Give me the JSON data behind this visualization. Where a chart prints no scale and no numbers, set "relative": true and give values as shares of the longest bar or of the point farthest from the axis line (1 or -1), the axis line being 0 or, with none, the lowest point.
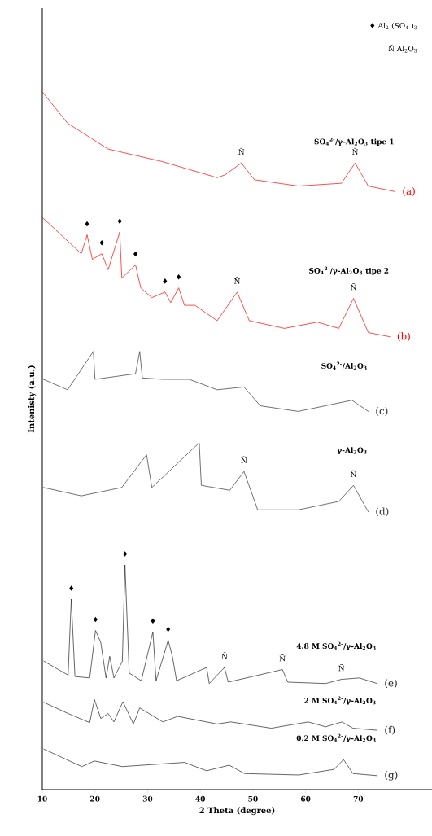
{
  "chart_data": {
    "type": "line",
    "relative": true,
    "xlabel": "2 Theta (degree)",
    "ylabel": "Intenisty (a.u.)",
    "xlim": [
      10,
      84
    ],
    "xticks": [
      10,
      20,
      30,
      40,
      50,
      60,
      70
    ],
    "grid": false,
    "legend": false,
    "marker": "none",
    "line_style": "solid",
    "series": [
      {
        "name": "(a)",
        "color": "#ff0000",
        "x": [
          10,
          14.8,
          22.5,
          32.8,
          43.2,
          44.7,
          47.8,
          50.3,
          58.6,
          66.8,
          69.4,
          71.9,
          77
        ],
        "values": [
          1.0,
          0.955,
          0.918,
          0.9,
          0.877,
          0.881,
          0.898,
          0.874,
          0.865,
          0.869,
          0.898,
          0.865,
          0.857
        ]
      },
      {
        "name": "(b)",
        "color": "#ff0000",
        "x": [
          10,
          17.4,
          18.5,
          19.5,
          21.3,
          22.5,
          24.7,
          25.1,
          27.7,
          28.7,
          30.8,
          33.3,
          34.4,
          35.9,
          37.0,
          39.0,
          43.2,
          47.0,
          49.3,
          56.0,
          62.2,
          66.3,
          69.1,
          71.9,
          76.0
        ],
        "values": [
          0.82,
          0.768,
          0.795,
          0.76,
          0.768,
          0.745,
          0.799,
          0.733,
          0.752,
          0.719,
          0.705,
          0.713,
          0.698,
          0.719,
          0.694,
          0.694,
          0.672,
          0.713,
          0.672,
          0.661,
          0.67,
          0.661,
          0.704,
          0.655,
          0.649
        ]
      },
      {
        "name": "(c)",
        "color": "#333333",
        "x": [
          10.2,
          14.8,
          19.7,
          20.0,
          27.7,
          28.5,
          29.0,
          32.8,
          37.9,
          43.2,
          48.3,
          51.4,
          58.6,
          63.7,
          68.8,
          71.9
        ],
        "values": [
          0.588,
          0.573,
          0.628,
          0.588,
          0.596,
          0.628,
          0.59,
          0.588,
          0.588,
          0.573,
          0.577,
          0.55,
          0.542,
          0.55,
          0.558,
          0.542
        ]
      },
      {
        "name": "(d)",
        "color": "#333333",
        "x": [
          10.2,
          17.4,
          25.1,
          29.8,
          30.8,
          39.8,
          40.2,
          45.6,
          48.3,
          50.9,
          58.6,
          66.3,
          69.1,
          71.9
        ],
        "values": [
          0.433,
          0.421,
          0.433,
          0.48,
          0.433,
          0.497,
          0.436,
          0.429,
          0.456,
          0.401,
          0.401,
          0.413,
          0.436,
          0.398
        ]
      },
      {
        "name": "(e)",
        "color": "#222222",
        "x": [
          10.3,
          14.9,
          15.5,
          16.2,
          19.0,
          20.1,
          21.1,
          22.1,
          22.8,
          23.6,
          25.2,
          25.7,
          26.5,
          28.8,
          31.0,
          31.6,
          33.9,
          34.7,
          35.5,
          41.2,
          41.7,
          44.6,
          45.3,
          55.6,
          56.6,
          63.8,
          66.8,
          70.2,
          73.6
        ],
        "values": [
          0.184,
          0.164,
          0.273,
          0.162,
          0.16,
          0.228,
          0.211,
          0.16,
          0.191,
          0.16,
          0.184,
          0.322,
          0.167,
          0.156,
          0.226,
          0.156,
          0.214,
          0.191,
          0.156,
          0.175,
          0.152,
          0.175,
          0.154,
          0.172,
          0.154,
          0.152,
          0.158,
          0.16,
          0.152
        ]
      },
      {
        "name": "(f)",
        "color": "#222222",
        "x": [
          10.3,
          14.9,
          19.0,
          19.9,
          21.1,
          22.5,
          23.6,
          25.3,
          27.3,
          28.5,
          32.9,
          35.7,
          43.2,
          45.8,
          53.5,
          60.5,
          63.8,
          66.9,
          69.0,
          73.6
        ],
        "values": [
          0.125,
          0.109,
          0.096,
          0.129,
          0.102,
          0.109,
          0.097,
          0.126,
          0.094,
          0.117,
          0.097,
          0.105,
          0.094,
          0.097,
          0.088,
          0.097,
          0.09,
          0.097,
          0.088,
          0.085
        ]
      },
      {
        "name": "(g)",
        "color": "#222222",
        "x": [
          10.3,
          17.5,
          19.9,
          25.2,
          37.0,
          41.2,
          45.5,
          48.4,
          58.7,
          65.4,
          67.2,
          69.0,
          73.6
        ],
        "values": [
          0.058,
          0.033,
          0.041,
          0.033,
          0.039,
          0.027,
          0.035,
          0.023,
          0.021,
          0.029,
          0.043,
          0.023,
          0.02
        ]
      }
    ],
    "annotations": [
      "♦ Al$_{2}$ (SO$_{4}$ )$_{3}$",
      "Ñ Al$_{2}$O$_{3}$",
      "SO$_{4}$$^{2-}$/γ-Al$_{2}$O$_{3}$ tipe 1",
      "SO$_{4}$$^{2-}$/γ-Al$_{2}$O$_{3}$ tipe 2",
      "SO$_{4}$$^{2-}$/Al$_{2}$O$_{3}$",
      "γ-Al$_{2}$O$_{3}$",
      "4.8 M SO$_{4}$$^{2-}$/γ-Al$_{2}$O$_{3}$",
      "2 M SO$_{4}$$^{2-}$/γ-Al$_{2}$O$_{3}$",
      "0.2 M SO$_{4}$$^{2-}$/γ-Al$_{2}$O$_{3}$",
      {
        "text": "Ñ",
        "x": 47.8,
        "y": 0.898
      },
      {
        "text": "Ñ",
        "x": 69.4,
        "y": 0.898
      },
      {
        "text": "♦",
        "x": 18.5,
        "y": 0.795
      },
      {
        "text": "♦",
        "x": 21.3,
        "y": 0.768
      },
      {
        "text": "♦",
        "x": 24.7,
        "y": 0.799
      },
      {
        "text": "♦",
        "x": 27.7,
        "y": 0.752
      },
      {
        "text": "♦",
        "x": 33.3,
        "y": 0.713
      },
      {
        "text": "♦",
        "x": 35.9,
        "y": 0.719
      },
      {
        "text": "Ñ",
        "x": 47.0,
        "y": 0.713
      },
      {
        "text": "Ñ",
        "x": 69.1,
        "y": 0.704
      },
      {
        "text": "Ñ",
        "x": 48.3,
        "y": 0.456
      },
      {
        "text": "Ñ",
        "x": 69.1,
        "y": 0.436
      },
      {
        "text": "♦",
        "x": 15.5,
        "y": 0.273
      },
      {
        "text": "♦",
        "x": 20.1,
        "y": 0.228
      },
      {
        "text": "♦",
        "x": 25.7,
        "y": 0.322
      },
      {
        "text": "♦",
        "x": 31.0,
        "y": 0.226
      },
      {
        "text": "♦",
        "x": 33.9,
        "y": 0.214
      },
      {
        "text": "Ñ",
        "x": 44.6,
        "y": 0.175
      },
      {
        "text": "Ñ",
        "x": 55.6,
        "y": 0.172
      },
      {
        "text": "Ñ",
        "x": 66.8,
        "y": 0.158
      }
    ]
  }
}
